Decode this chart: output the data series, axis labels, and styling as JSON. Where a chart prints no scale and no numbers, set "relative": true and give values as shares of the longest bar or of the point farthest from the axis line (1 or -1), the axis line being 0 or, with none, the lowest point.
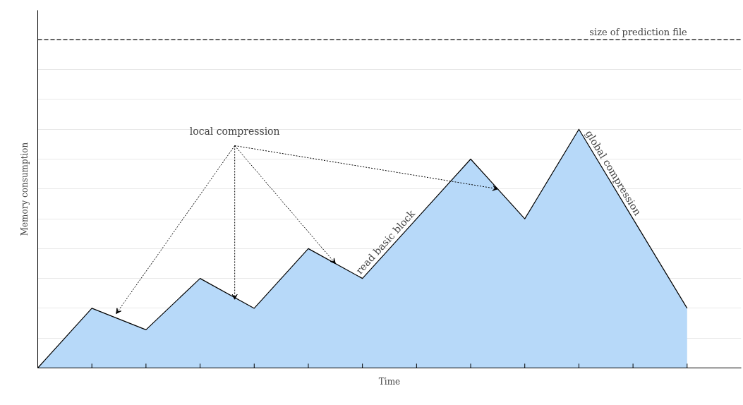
{
  "chart_data": {
    "type": "area",
    "relative": true,
    "xlabel": "Time",
    "ylabel": "Memory consumption",
    "categories": [
      null,
      null,
      null,
      null,
      null,
      null,
      null,
      null,
      null,
      null,
      null,
      null,
      null
    ],
    "series": [
      {
        "color": "#b7d9f9",
        "values": [
          0,
          0.25,
          0.16,
          0.375,
          0.25,
          0.5,
          0.375,
          0.625,
          0.875,
          0.625,
          1,
          0.625,
          0.25
        ]
      }
    ],
    "ref_lines": [
      {
        "axis": "y",
        "value": 1.375,
        "label": "size of prediction file",
        "color": "#000000",
        "line_style": "dashed"
      }
    ],
    "annotations": [
      "local compression",
      "read basic block",
      "global compression"
    ],
    "grid": "y",
    "marker": "none",
    "line_style": "solid"
  }
}
